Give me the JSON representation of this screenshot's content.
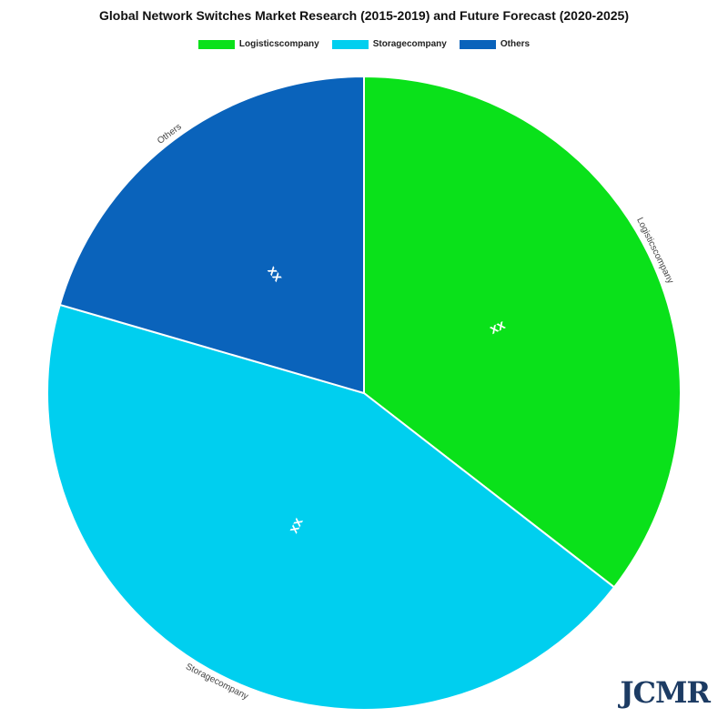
{
  "chart_data": {
    "type": "pie",
    "title": "Global Network Switches Market Research (2015-2019) and Future Forecast (2020-2025)",
    "slices": [
      {
        "name": "Logisticscompany",
        "value": 35.5,
        "color": "#0ae11a",
        "data_label": "xx"
      },
      {
        "name": "Storagecompany",
        "value": 44.0,
        "color": "#00cfef",
        "data_label": "xx"
      },
      {
        "name": "Others",
        "value": 20.5,
        "color": "#0a63bb",
        "data_label": "xx"
      }
    ],
    "legend_position": "top-center",
    "start_angle_deg": 0,
    "direction": "clockwise"
  },
  "watermark": "JCMR"
}
